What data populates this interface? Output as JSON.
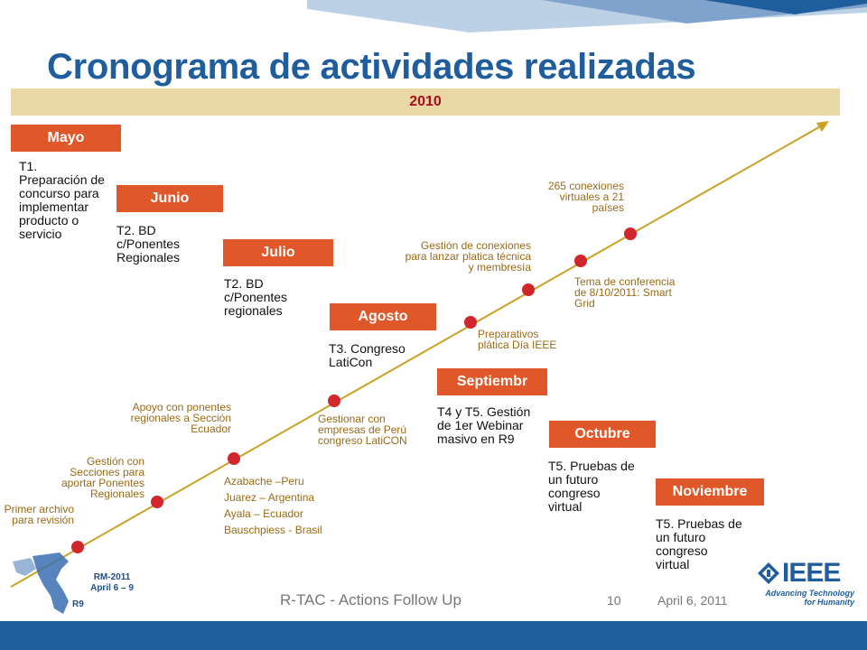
{
  "title": "Cronograma de actividades realizadas",
  "year": "2010",
  "months": [
    {
      "label": "Mayo",
      "task": "T1. Preparación de concurso para implementar producto o servicio"
    },
    {
      "label": "Junio",
      "task": "T2. BD c/Ponentes Regionales"
    },
    {
      "label": "Julio",
      "task": "T2. BD c/Ponentes regionales"
    },
    {
      "label": "Agosto",
      "task": "T3. Congreso LatiCon"
    },
    {
      "label": "Septiembr",
      "task": "T4 y T5. Gestión de 1er Webinar masivo en R9"
    },
    {
      "label": "Octubre",
      "task": "T5. Pruebas de un futuro congreso virtual"
    },
    {
      "label": "Noviembre",
      "task": "T5. Pruebas de un futuro congreso virtual"
    }
  ],
  "annotations": [
    "Primer archivo para revisión",
    "Gestión con Secciones para aportar Ponentes Regionales",
    "Apoyo con ponentes regionales a Sección Ecuador",
    "Gestionar con empresas de Perú congreso LatiCON",
    "Preparativos plática Día IEEE",
    "Gestión de conexiones para lanzar platica técnica y membresía",
    "Tema de conferencia de 8/10/2011: Smart Grid",
    "265 conexiones virtuales a 21 países"
  ],
  "contacts": [
    "Azabache –Peru",
    "Juarez – Argentina",
    "Ayala – Ecuador",
    "Bauschpiess - Brasil"
  ],
  "footer": {
    "meeting": "RM-2011",
    "dates": "April 6 – 9",
    "region": "R9",
    "center": "R-TAC - Actions Follow Up",
    "page": "10",
    "date": "April 6, 2011",
    "logo_text": "IEEE",
    "tagline_1": "Advancing Technology",
    "tagline_2": "for Humanity"
  },
  "colors": {
    "title_blue": "#1f5d9c",
    "month_orange": "#e0582a",
    "year_band": "#e9d7a5",
    "year_text": "#a50f1c",
    "timeline_gold": "#c9a227",
    "milestone_red": "#d1272c",
    "annotation_brown": "#9a6a16"
  }
}
